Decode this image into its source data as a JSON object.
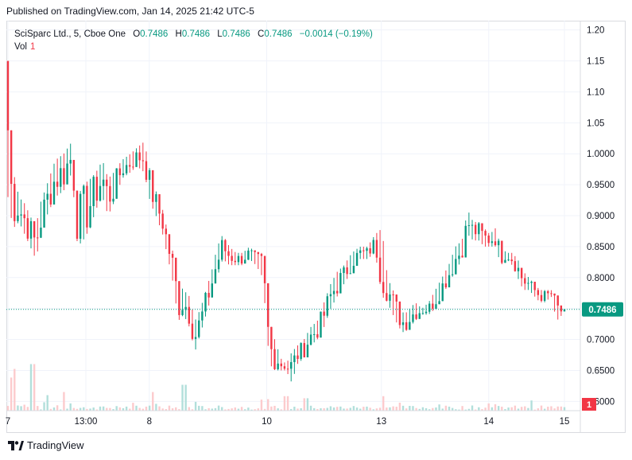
{
  "header": {
    "published": "Published on TradingView.com, Jan 14, 2025 21:42 UTC-5"
  },
  "legend": {
    "symbol": "SciSparc Ltd., 5, Cboe One",
    "o_label": "O",
    "o_value": "0.7486",
    "h_label": "H",
    "h_value": "0.7486",
    "l_label": "L",
    "l_value": "0.7486",
    "c_label": "C",
    "c_value": "0.7486",
    "change": "−0.0014 (−0.19%)",
    "vol_label": "Vol",
    "vol_value": "1"
  },
  "price_tag": "0.7486",
  "volume_tag": "1",
  "footer": {
    "brand": "TradingView"
  },
  "colors": {
    "up": "#089981",
    "down": "#f23645",
    "up_vol": "#b2dfdb",
    "down_vol": "#fccbcd",
    "grid": "#f0f3fa"
  },
  "chart_data": {
    "type": "candlestick",
    "title": "SciSparc Ltd., 5, Cboe One",
    "y_ticks": [
      "0.6000",
      "0.6500",
      "0.7000",
      "0.7500",
      "0.8000",
      "0.8500",
      "0.9000",
      "0.9500",
      "1.0000",
      "1.05",
      "1.10",
      "1.15",
      "1.20"
    ],
    "ylim": [
      0.585,
      1.215
    ],
    "x_ticks": [
      {
        "label": "7",
        "x": 0.0
      },
      {
        "label": "13:00",
        "x": 0.14
      },
      {
        "label": "8",
        "x": 0.254
      },
      {
        "label": "10",
        "x": 0.465
      },
      {
        "label": "13",
        "x": 0.671
      },
      {
        "label": "14",
        "x": 0.864
      },
      {
        "label": "15",
        "x": 1.0
      }
    ],
    "last_price": 0.7486,
    "grid": true,
    "price_path": [
      [
        0.0,
        1.15,
        0.93
      ],
      [
        0.005,
        1.0,
        0.9
      ],
      [
        0.01,
        0.97,
        0.88
      ],
      [
        0.02,
        0.93,
        0.89
      ],
      [
        0.03,
        0.92,
        0.87
      ],
      [
        0.04,
        0.9,
        0.85
      ],
      [
        0.05,
        0.88,
        0.83
      ],
      [
        0.058,
        0.92,
        0.86
      ],
      [
        0.07,
        0.95,
        0.9
      ],
      [
        0.085,
        0.99,
        0.93
      ],
      [
        0.1,
        1.0,
        0.94
      ],
      [
        0.115,
        1.02,
        0.97
      ],
      [
        0.125,
        0.93,
        0.85
      ],
      [
        0.135,
        0.95,
        0.86
      ],
      [
        0.148,
        0.96,
        0.88
      ],
      [
        0.158,
        0.97,
        0.91
      ],
      [
        0.17,
        0.99,
        0.93
      ],
      [
        0.18,
        0.96,
        0.9
      ],
      [
        0.19,
        0.97,
        0.92
      ],
      [
        0.205,
        0.99,
        0.96
      ],
      [
        0.22,
        1.0,
        0.97
      ],
      [
        0.232,
        1.01,
        0.98
      ],
      [
        0.245,
        1.02,
        0.97
      ],
      [
        0.256,
        0.97,
        0.92
      ],
      [
        0.266,
        0.94,
        0.9
      ],
      [
        0.278,
        0.91,
        0.87
      ],
      [
        0.288,
        0.87,
        0.83
      ],
      [
        0.297,
        0.84,
        0.79
      ],
      [
        0.306,
        0.79,
        0.73
      ],
      [
        0.316,
        0.78,
        0.74
      ],
      [
        0.326,
        0.77,
        0.72
      ],
      [
        0.336,
        0.73,
        0.68
      ],
      [
        0.346,
        0.75,
        0.71
      ],
      [
        0.356,
        0.78,
        0.74
      ],
      [
        0.366,
        0.81,
        0.77
      ],
      [
        0.376,
        0.85,
        0.8
      ],
      [
        0.386,
        0.87,
        0.83
      ],
      [
        0.398,
        0.85,
        0.82
      ],
      [
        0.41,
        0.84,
        0.82
      ],
      [
        0.422,
        0.84,
        0.82
      ],
      [
        0.434,
        0.85,
        0.83
      ],
      [
        0.446,
        0.84,
        0.82
      ],
      [
        0.458,
        0.84,
        0.8
      ],
      [
        0.47,
        0.71,
        0.66
      ],
      [
        0.48,
        0.7,
        0.65
      ],
      [
        0.49,
        0.67,
        0.65
      ],
      [
        0.5,
        0.66,
        0.65
      ],
      [
        0.51,
        0.68,
        0.63
      ],
      [
        0.52,
        0.69,
        0.66
      ],
      [
        0.532,
        0.7,
        0.67
      ],
      [
        0.544,
        0.72,
        0.69
      ],
      [
        0.556,
        0.73,
        0.7
      ],
      [
        0.568,
        0.76,
        0.72
      ],
      [
        0.58,
        0.79,
        0.75
      ],
      [
        0.592,
        0.81,
        0.77
      ],
      [
        0.604,
        0.82,
        0.79
      ],
      [
        0.618,
        0.84,
        0.81
      ],
      [
        0.632,
        0.85,
        0.83
      ],
      [
        0.646,
        0.85,
        0.83
      ],
      [
        0.66,
        0.87,
        0.84
      ],
      [
        0.672,
        0.88,
        0.77
      ],
      [
        0.682,
        0.8,
        0.76
      ],
      [
        0.692,
        0.78,
        0.74
      ],
      [
        0.702,
        0.76,
        0.72
      ],
      [
        0.712,
        0.74,
        0.71
      ],
      [
        0.722,
        0.75,
        0.72
      ],
      [
        0.732,
        0.76,
        0.73
      ],
      [
        0.744,
        0.75,
        0.74
      ],
      [
        0.756,
        0.76,
        0.74
      ],
      [
        0.768,
        0.78,
        0.75
      ],
      [
        0.78,
        0.8,
        0.77
      ],
      [
        0.792,
        0.82,
        0.79
      ],
      [
        0.804,
        0.85,
        0.81
      ],
      [
        0.816,
        0.86,
        0.83
      ],
      [
        0.826,
        0.91,
        0.87
      ],
      [
        0.836,
        0.89,
        0.86
      ],
      [
        0.846,
        0.89,
        0.86
      ],
      [
        0.856,
        0.88,
        0.85
      ],
      [
        0.866,
        0.87,
        0.85
      ],
      [
        0.876,
        0.88,
        0.85
      ],
      [
        0.886,
        0.85,
        0.82
      ],
      [
        0.896,
        0.84,
        0.83
      ],
      [
        0.906,
        0.84,
        0.82
      ],
      [
        0.916,
        0.83,
        0.8
      ],
      [
        0.926,
        0.81,
        0.78
      ],
      [
        0.936,
        0.8,
        0.78
      ],
      [
        0.946,
        0.79,
        0.77
      ],
      [
        0.956,
        0.78,
        0.76
      ],
      [
        0.966,
        0.78,
        0.76
      ],
      [
        0.976,
        0.78,
        0.77
      ],
      [
        0.986,
        0.77,
        0.73
      ],
      [
        0.996,
        0.75,
        0.74
      ],
      [
        1.0,
        0.749,
        0.748
      ]
    ],
    "volume_spikes": [
      {
        "x": 0.005,
        "v": 0.32
      },
      {
        "x": 0.013,
        "v": 0.36
      },
      {
        "x": 0.044,
        "v": 0.45
      },
      {
        "x": 0.07,
        "v": 0.15
      },
      {
        "x": 0.1,
        "v": 0.18
      },
      {
        "x": 0.26,
        "v": 0.18
      },
      {
        "x": 0.316,
        "v": 0.25
      },
      {
        "x": 0.5,
        "v": 0.14
      },
      {
        "x": 0.535,
        "v": 0.12
      },
      {
        "x": 0.673,
        "v": 0.14
      },
      {
        "x": 0.862,
        "v": 0.07
      }
    ]
  }
}
